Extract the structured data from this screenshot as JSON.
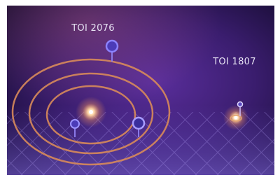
{
  "systems": [
    {
      "name": "TOI 2076"
    },
    {
      "name": "TOI 1807"
    }
  ]
}
